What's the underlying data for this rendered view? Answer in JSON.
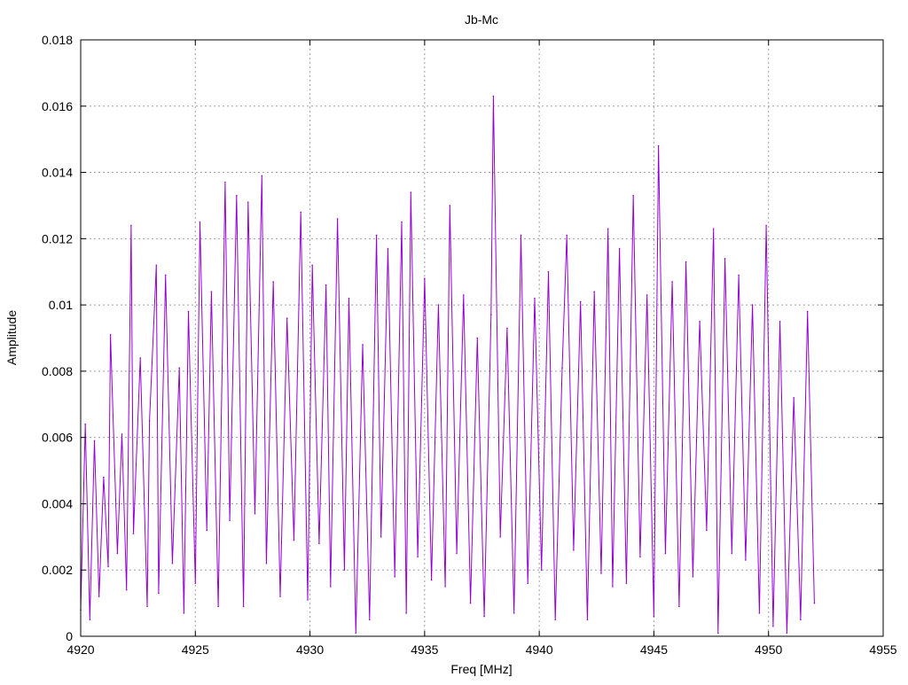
{
  "chart_data": {
    "type": "line",
    "title": "Jb-Mc",
    "xlabel": "Freq [MHz]",
    "ylabel": "Amplitude",
    "xlim": [
      4920,
      4955
    ],
    "ylim": [
      0,
      0.018
    ],
    "grid": true,
    "line_color": "#9400d3",
    "x_tick_labels": [
      "4920",
      "4925",
      "4930",
      "4935",
      "4940",
      "4945",
      "4950",
      "4955"
    ],
    "y_tick_labels": [
      "0",
      "0.002",
      "0.004",
      "0.006",
      "0.008",
      "0.01",
      "0.012",
      "0.014",
      "0.016",
      "0.018"
    ],
    "series": [
      {
        "x": [
          4920.0,
          4920.2,
          4920.4,
          4920.6,
          4920.8,
          4921.0,
          4921.2,
          4921.3,
          4921.6,
          4921.8,
          4922.0,
          4922.2,
          4922.3,
          4922.6,
          4922.9,
          4923.0,
          4923.3,
          4923.4,
          4923.7,
          4924.0,
          4924.3,
          4924.5,
          4924.7,
          4925.0,
          4925.2,
          4925.5,
          4925.7,
          4926.0,
          4926.3,
          4926.5,
          4926.8,
          4927.1,
          4927.3,
          4927.6,
          4927.9,
          4928.1,
          4928.4,
          4928.7,
          4929.0,
          4929.3,
          4929.6,
          4929.9,
          4930.1,
          4930.4,
          4930.7,
          4930.9,
          4931.2,
          4931.5,
          4931.7,
          4932.0,
          4932.3,
          4932.6,
          4932.9,
          4933.1,
          4933.4,
          4933.7,
          4934.0,
          4934.2,
          4934.4,
          4934.7,
          4935.0,
          4935.3,
          4935.6,
          4935.9,
          4936.1,
          4936.4,
          4936.7,
          4937.0,
          4937.3,
          4937.6,
          4937.9,
          4938.0,
          4938.3,
          4938.6,
          4938.9,
          4939.2,
          4939.5,
          4939.8,
          4940.1,
          4940.4,
          4940.7,
          4941.0,
          4941.2,
          4941.5,
          4941.8,
          4942.1,
          4942.4,
          4942.7,
          4943.0,
          4943.2,
          4943.5,
          4943.8,
          4944.1,
          4944.4,
          4944.7,
          4945.0,
          4945.2,
          4945.5,
          4945.8,
          4946.1,
          4946.4,
          4946.7,
          4947.0,
          4947.3,
          4947.6,
          4947.8,
          4948.1,
          4948.4,
          4948.7,
          4949.0,
          4949.3,
          4949.6,
          4949.9,
          4950.2,
          4950.5,
          4950.8,
          4951.1,
          4951.4,
          4951.7,
          4952.0
        ],
        "y": [
          0.0008,
          0.0064,
          0.0005,
          0.0059,
          0.0012,
          0.0048,
          0.0021,
          0.0091,
          0.0025,
          0.0061,
          0.0014,
          0.0124,
          0.0031,
          0.0084,
          0.0009,
          0.0065,
          0.0112,
          0.0013,
          0.0109,
          0.0022,
          0.0081,
          0.0007,
          0.0098,
          0.0016,
          0.0125,
          0.0032,
          0.0104,
          0.0009,
          0.0137,
          0.0035,
          0.0133,
          0.0009,
          0.0131,
          0.0037,
          0.0139,
          0.0022,
          0.0107,
          0.0012,
          0.0096,
          0.0029,
          0.0128,
          0.0011,
          0.0112,
          0.0028,
          0.0106,
          0.0015,
          0.0126,
          0.002,
          0.0102,
          0.0001,
          0.0088,
          0.0005,
          0.0121,
          0.003,
          0.0117,
          0.0018,
          0.0125,
          0.0007,
          0.0134,
          0.0024,
          0.0108,
          0.0017,
          0.01,
          0.0015,
          0.013,
          0.0025,
          0.0103,
          0.001,
          0.009,
          0.0006,
          0.0097,
          0.0163,
          0.003,
          0.0093,
          0.0007,
          0.0121,
          0.0016,
          0.0102,
          0.002,
          0.011,
          0.0005,
          0.0081,
          0.0121,
          0.0026,
          0.0101,
          0.0005,
          0.0104,
          0.0019,
          0.0123,
          0.0015,
          0.0117,
          0.0016,
          0.0133,
          0.0024,
          0.0103,
          0.0006,
          0.0148,
          0.0025,
          0.0107,
          0.0009,
          0.0113,
          0.0018,
          0.0095,
          0.0032,
          0.0123,
          0.0001,
          0.0114,
          0.0025,
          0.0109,
          0.0023,
          0.01,
          0.0007,
          0.0124,
          0.0003,
          0.0095,
          0.0001,
          0.0072,
          0.0005,
          0.0098,
          0.001
        ]
      }
    ]
  }
}
